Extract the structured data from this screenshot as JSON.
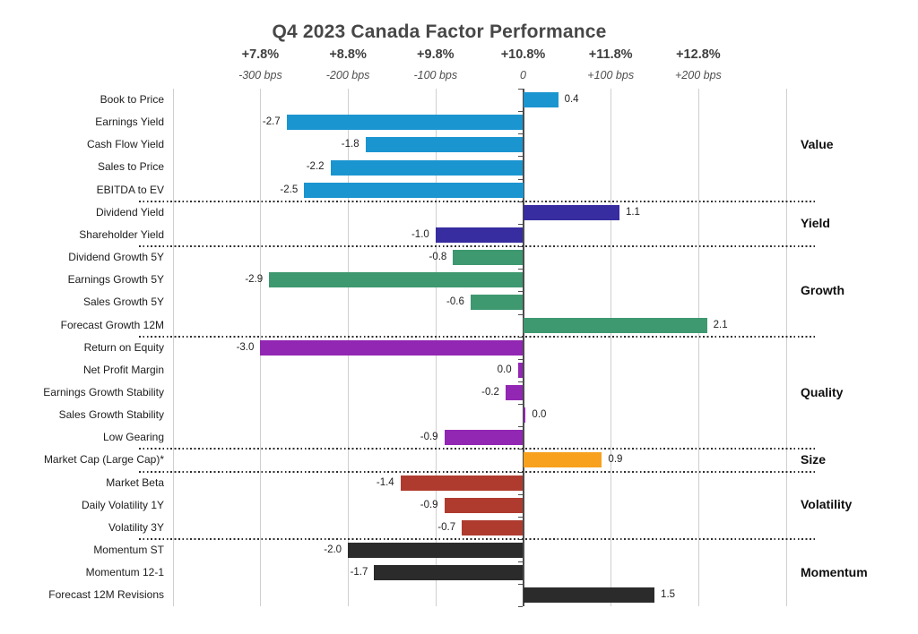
{
  "chart_data": {
    "type": "bar",
    "orientation": "horizontal",
    "title": "Q4 2023 Canada Factor Performance",
    "axis": {
      "top_tick_labels": [
        "+7.8%",
        "+8.8%",
        "+9.8%",
        "+10.8%",
        "+11.8%",
        "+12.8%"
      ],
      "bottom_tick_labels": [
        "-300 bps",
        "-200 bps",
        "-100 bps",
        "0",
        "+100 bps",
        "+200 bps"
      ],
      "tick_values": [
        -3,
        -2,
        -1,
        0,
        1,
        2
      ],
      "xlim": [
        -4,
        3
      ],
      "gridlines": true,
      "grid_color": "#cfcfcf",
      "zero_line_color": "#4d4d4d"
    },
    "legend_position": "right-group-labels",
    "groups": [
      {
        "name": "Value",
        "color": "#1B95D0",
        "bars": [
          {
            "label": "Book to Price",
            "value": 0.4,
            "display": "0.4"
          },
          {
            "label": "Earnings Yield",
            "value": -2.7,
            "display": "-2.7"
          },
          {
            "label": "Cash Flow Yield",
            "value": -1.8,
            "display": "-1.8"
          },
          {
            "label": "Sales to Price",
            "value": -2.2,
            "display": "-2.2"
          },
          {
            "label": "EBITDA to EV",
            "value": -2.5,
            "display": "-2.5"
          }
        ]
      },
      {
        "name": "Yield",
        "color": "#372CA0",
        "bars": [
          {
            "label": "Dividend Yield",
            "value": 1.1,
            "display": "1.1"
          },
          {
            "label": "Shareholder Yield",
            "value": -1.0,
            "display": "-1.0"
          }
        ]
      },
      {
        "name": "Growth",
        "color": "#3E9870",
        "bars": [
          {
            "label": "Dividend Growth 5Y",
            "value": -0.8,
            "display": "-0.8"
          },
          {
            "label": "Earnings Growth 5Y",
            "value": -2.9,
            "display": "-2.9"
          },
          {
            "label": "Sales Growth 5Y",
            "value": -0.6,
            "display": "-0.6"
          },
          {
            "label": "Forecast Growth 12M",
            "value": 2.1,
            "display": "2.1"
          }
        ]
      },
      {
        "name": "Quality",
        "color": "#9227B3",
        "bars": [
          {
            "label": "Return on Equity",
            "value": -3.0,
            "display": "-3.0"
          },
          {
            "label": "Net Profit Margin",
            "value": 0.0,
            "display": "0.0",
            "draw": -0.06
          },
          {
            "label": "Earnings Growth Stability",
            "value": -0.2,
            "display": "-0.2"
          },
          {
            "label": "Sales Growth Stability",
            "value": 0.0,
            "display": "0.0",
            "draw": 0.03
          },
          {
            "label": "Low Gearing",
            "value": -0.9,
            "display": "-0.9"
          }
        ]
      },
      {
        "name": "Size",
        "color": "#F7A11E",
        "bars": [
          {
            "label": "Market Cap (Large Cap)*",
            "value": 0.9,
            "display": "0.9"
          }
        ]
      },
      {
        "name": "Volatility",
        "color": "#AF3B2F",
        "bars": [
          {
            "label": "Market Beta",
            "value": -1.4,
            "display": "-1.4"
          },
          {
            "label": "Daily Volatility 1Y",
            "value": -0.9,
            "display": "-0.9"
          },
          {
            "label": "Volatility 3Y",
            "value": -0.7,
            "display": "-0.7"
          }
        ]
      },
      {
        "name": "Momentum",
        "color": "#2B2B2B",
        "bars": [
          {
            "label": "Momentum ST",
            "value": -2.0,
            "display": "-2.0"
          },
          {
            "label": "Momentum 12-1",
            "value": -1.7,
            "display": "-1.7"
          },
          {
            "label": "Forecast 12M Revisions",
            "value": 1.5,
            "display": "1.5"
          }
        ]
      }
    ]
  }
}
